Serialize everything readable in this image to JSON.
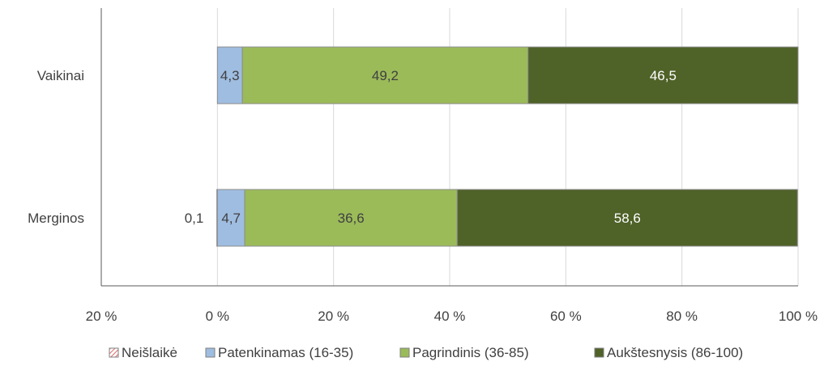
{
  "chart_data": {
    "type": "bar",
    "orientation": "horizontal",
    "stacked": true,
    "categories": [
      "Vaikinai",
      "Merginos"
    ],
    "series": [
      {
        "name": "Neišlaikė",
        "values": [
          0,
          -0.1
        ],
        "color": "#e06666",
        "pattern": "hatched"
      },
      {
        "name": "Patenkinamas (16-35)",
        "values": [
          4.3,
          4.7
        ],
        "color": "#9fbde0"
      },
      {
        "name": "Pagrindinis (36-85)",
        "values": [
          49.2,
          36.6
        ],
        "color": "#9bbb59"
      },
      {
        "name": "Aukštesnysis (86-100)",
        "values": [
          46.5,
          58.6
        ],
        "color": "#4f6228"
      }
    ],
    "data_labels": [
      {
        "series": 0,
        "category": 1,
        "text": "0,1",
        "color": "#404040"
      },
      {
        "series": 1,
        "category": 0,
        "text": "4,3",
        "color": "#404040"
      },
      {
        "series": 1,
        "category": 1,
        "text": "4,7",
        "color": "#404040"
      },
      {
        "series": 2,
        "category": 0,
        "text": "49,2",
        "color": "#404040"
      },
      {
        "series": 2,
        "category": 1,
        "text": "36,6",
        "color": "#404040"
      },
      {
        "series": 3,
        "category": 0,
        "text": "46,5",
        "color": "#ffffff"
      },
      {
        "series": 3,
        "category": 1,
        "text": "58,6",
        "color": "#ffffff"
      }
    ],
    "xlim": [
      -20,
      100
    ],
    "xticks": [
      -20,
      0,
      20,
      40,
      60,
      80,
      100
    ],
    "xtick_labels": [
      "20 %",
      "0 %",
      "20 %",
      "40 %",
      "60 %",
      "80 %",
      "100 %"
    ],
    "grid": true,
    "legend_position": "bottom"
  }
}
